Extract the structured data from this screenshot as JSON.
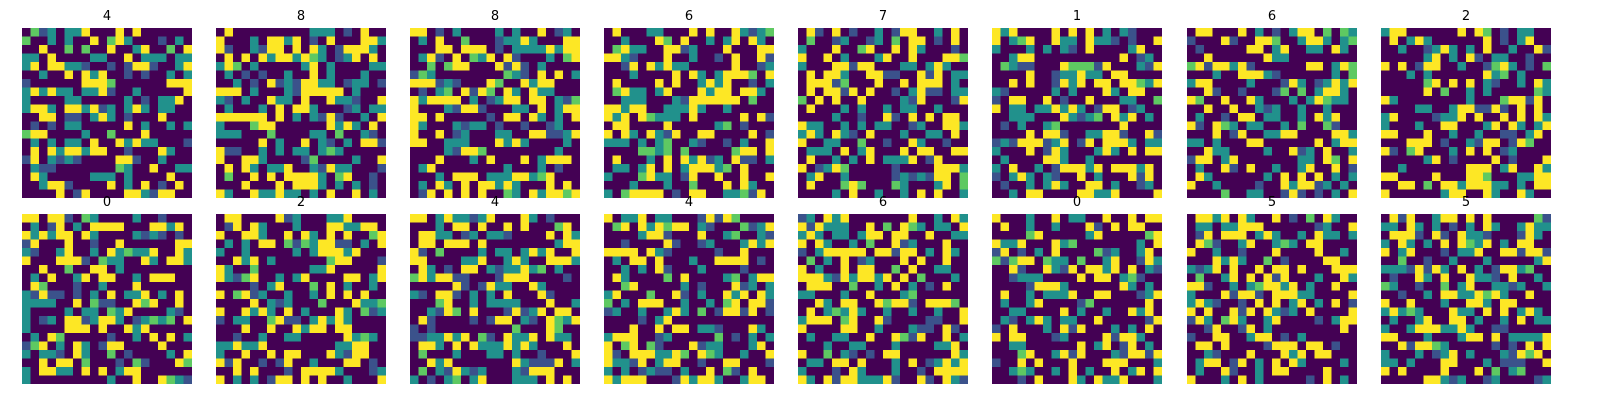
{
  "chart_data": {
    "type": "heatmap",
    "colormap": [
      "#440154",
      "#3b528b",
      "#21918c",
      "#5ec962",
      "#fde725"
    ],
    "grid_size": 20,
    "rows": 2,
    "cols": 8,
    "axes_visible": false,
    "panels": [
      {
        "title": "4",
        "seed": 101
      },
      {
        "title": "8",
        "seed": 202
      },
      {
        "title": "8",
        "seed": 303
      },
      {
        "title": "6",
        "seed": 404
      },
      {
        "title": "7",
        "seed": 505
      },
      {
        "title": "1",
        "seed": 606
      },
      {
        "title": "6",
        "seed": 707
      },
      {
        "title": "2",
        "seed": 808
      },
      {
        "title": "0",
        "seed": 909
      },
      {
        "title": "2",
        "seed": 1010
      },
      {
        "title": "4",
        "seed": 1111
      },
      {
        "title": "4",
        "seed": 1212
      },
      {
        "title": "6",
        "seed": 1313
      },
      {
        "title": "0",
        "seed": 1414
      },
      {
        "title": "5",
        "seed": 1515
      },
      {
        "title": "5",
        "seed": 1616
      }
    ]
  }
}
